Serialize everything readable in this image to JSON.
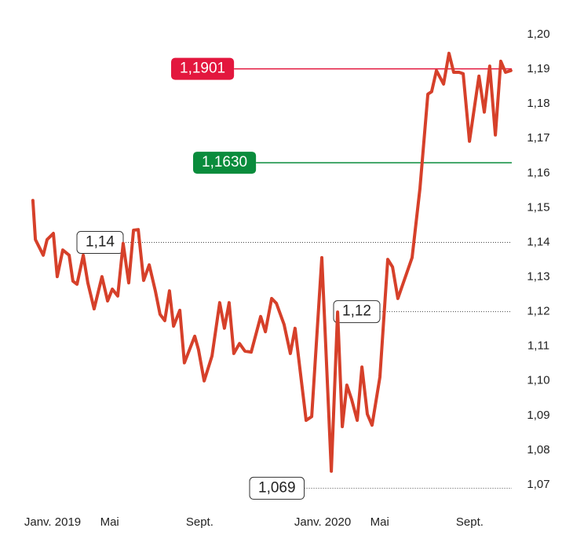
{
  "chart_data": {
    "type": "line",
    "color": "#d6402a",
    "x": [
      0.59,
      0.7,
      1.05,
      1.22,
      1.5,
      1.67,
      1.92,
      2.2,
      2.37,
      2.55,
      2.83,
      3.03,
      3.31,
      3.66,
      3.91,
      4.12,
      4.36,
      4.6,
      4.85,
      5.06,
      5.27,
      5.51,
      5.76,
      6.03,
      6.24,
      6.45,
      6.66,
      6.84,
      7.12,
      7.32,
      7.78,
      7.95,
      8.2,
      8.55,
      8.89,
      9.1,
      9.31,
      9.52,
      9.77,
      10.01,
      10.29,
      10.71,
      10.92,
      11.2,
      11.41,
      11.75,
      12.03,
      12.24,
      12.73,
      12.98,
      13.43,
      13.85,
      14.13,
      14.34,
      14.54,
      14.75,
      15.0,
      15.21,
      15.45,
      15.66,
      16.01,
      16.36,
      16.57,
      16.81,
      17.44,
      17.79,
      18.14,
      18.31,
      18.52,
      18.84,
      19.08,
      19.29,
      19.53,
      19.71,
      19.99,
      20.41,
      20.65,
      20.89,
      21.14,
      21.38,
      21.59,
      21.83
    ],
    "values": [
      1.1521,
      1.1408,
      1.1363,
      1.1408,
      1.1426,
      1.1301,
      1.1378,
      1.1363,
      1.1288,
      1.1279,
      1.1363,
      1.1283,
      1.1208,
      1.1301,
      1.1231,
      1.1265,
      1.1245,
      1.1397,
      1.1283,
      1.1435,
      1.1437,
      1.129,
      1.1335,
      1.126,
      1.1192,
      1.1174,
      1.126,
      1.1158,
      1.1204,
      1.1052,
      1.1129,
      1.109,
      1.1,
      1.1072,
      1.1226,
      1.1152,
      1.1226,
      1.1079,
      1.1108,
      1.1086,
      1.1083,
      1.1186,
      1.1142,
      1.1238,
      1.1224,
      1.1163,
      1.1079,
      1.1152,
      1.0886,
      1.0897,
      1.1356,
      1.0739,
      1.1199,
      1.0868,
      1.0988,
      1.0947,
      1.0886,
      1.104,
      1.0904,
      1.0872,
      1.1011,
      1.1351,
      1.1329,
      1.1238,
      1.1356,
      1.1555,
      1.1828,
      1.1835,
      1.1896,
      1.1857,
      1.1946,
      1.1891,
      1.1891,
      1.1887,
      1.1692,
      1.188,
      1.1776,
      1.1909,
      1.171,
      1.1923,
      1.1891,
      1.1896
    ],
    "xlim": [
      -0.2,
      22.6
    ],
    "xticks": [
      {
        "value": 0,
        "label": "Janv. 2019"
      },
      {
        "value": 4,
        "label": "Mai"
      },
      {
        "value": 8,
        "label": "Sept."
      },
      {
        "value": 12,
        "label": "Janv. 2020"
      },
      {
        "value": 16,
        "label": "Mai"
      },
      {
        "value": 20,
        "label": "Sept."
      }
    ],
    "ylim": [
      1.07,
      1.2
    ],
    "yticks": [
      {
        "value": 1.07,
        "label": "1,07"
      },
      {
        "value": 1.08,
        "label": "1,08"
      },
      {
        "value": 1.09,
        "label": "1,09"
      },
      {
        "value": 1.1,
        "label": "1,10"
      },
      {
        "value": 1.11,
        "label": "1,11"
      },
      {
        "value": 1.12,
        "label": "1,12"
      },
      {
        "value": 1.13,
        "label": "1,13"
      },
      {
        "value": 1.14,
        "label": "1,14"
      },
      {
        "value": 1.15,
        "label": "1,15"
      },
      {
        "value": 1.16,
        "label": "1,16"
      },
      {
        "value": 1.17,
        "label": "1,17"
      },
      {
        "value": 1.18,
        "label": "1,18"
      },
      {
        "value": 1.19,
        "label": "1,19"
      },
      {
        "value": 1.2,
        "label": "1,20"
      }
    ],
    "reference_lines": [
      {
        "value": 1.1901,
        "label": "1,1901",
        "color": "#e3173e"
      },
      {
        "value": 1.163,
        "label": "1,1630",
        "color": "#0a8c3c"
      }
    ],
    "annotations": [
      {
        "value": 1.14,
        "label": "1,14"
      },
      {
        "value": 1.12,
        "label": "1,12"
      },
      {
        "value": 1.069,
        "label": "1,069"
      }
    ]
  }
}
